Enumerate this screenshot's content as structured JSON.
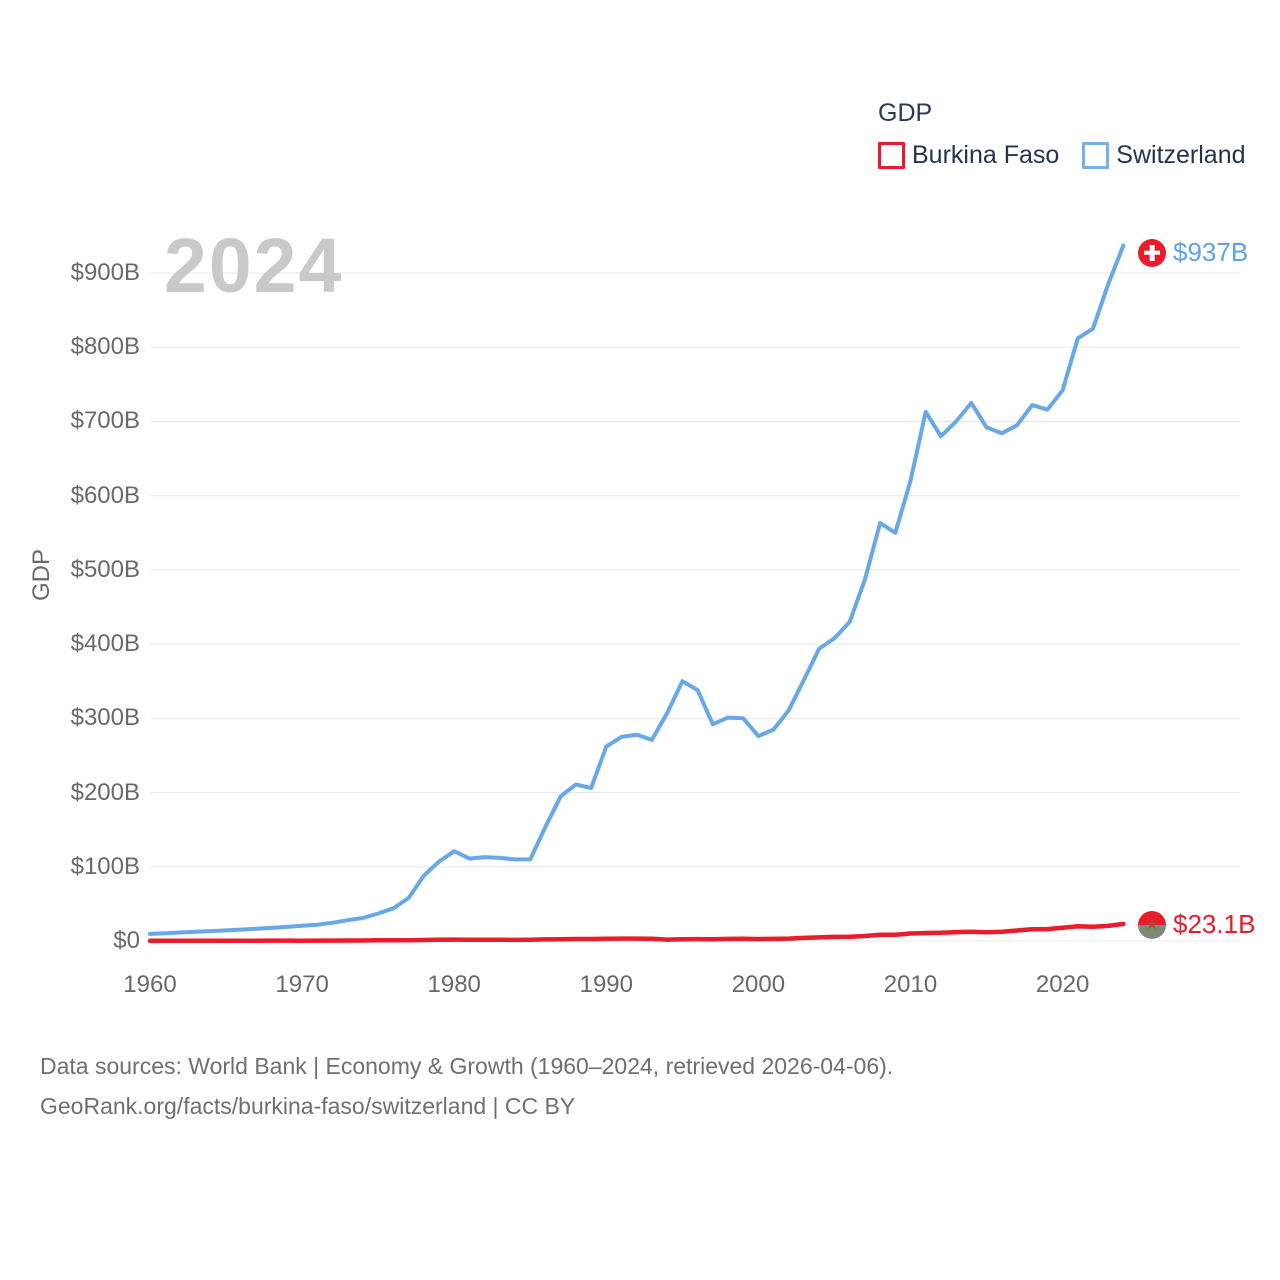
{
  "watermark": "2024",
  "legend": {
    "title": "GDP",
    "items": [
      {
        "label": "Burkina Faso",
        "color": "#e81c2a"
      },
      {
        "label": "Switzerland",
        "color": "#77b1ea"
      }
    ]
  },
  "icons": {
    "burkina_faso_star_glyph": "★"
  },
  "footer": {
    "line1": "Data sources: World Bank | Economy & Growth (1960–2024, retrieved 2026-04-06).",
    "line2": "GeoRank.org/facts/burkina-faso/switzerland | CC BY"
  },
  "chart_data": {
    "type": "line",
    "title": "GDP",
    "ylabel": "GDP",
    "grid": "horizontal",
    "legend_position": "top-right",
    "x_axis": {
      "range": [
        1960,
        2024
      ],
      "ticks": [
        1960,
        1970,
        1980,
        1990,
        2000,
        2010,
        2020
      ],
      "tick_labels": [
        "1960",
        "1970",
        "1980",
        "1990",
        "2000",
        "2010",
        "2020"
      ]
    },
    "y_axis": {
      "unit": "billions of USD",
      "range": [
        0,
        950
      ],
      "ticks": [
        0,
        100,
        200,
        300,
        400,
        500,
        600,
        700,
        800,
        900
      ],
      "tick_labels": [
        "$0",
        "$100B",
        "$200B",
        "$300B",
        "$400B",
        "$500B",
        "$600B",
        "$700B",
        "$800B",
        "$900B"
      ]
    },
    "years": [
      1960,
      1961,
      1962,
      1963,
      1964,
      1965,
      1966,
      1967,
      1968,
      1969,
      1970,
      1971,
      1972,
      1973,
      1974,
      1975,
      1976,
      1977,
      1978,
      1979,
      1980,
      1981,
      1982,
      1983,
      1984,
      1985,
      1986,
      1987,
      1988,
      1989,
      1990,
      1991,
      1992,
      1993,
      1994,
      1995,
      1996,
      1997,
      1998,
      1999,
      2000,
      2001,
      2002,
      2003,
      2004,
      2005,
      2006,
      2007,
      2008,
      2009,
      2010,
      2011,
      2012,
      2013,
      2014,
      2015,
      2016,
      2017,
      2018,
      2019,
      2020,
      2021,
      2022,
      2023,
      2024
    ],
    "series": [
      {
        "name": "Burkina Faso",
        "color": "#e81c2a",
        "end_label": "$23.1B",
        "flag": "burkina-faso",
        "values": [
          0.33,
          0.35,
          0.37,
          0.39,
          0.41,
          0.43,
          0.44,
          0.46,
          0.48,
          0.49,
          0.46,
          0.49,
          0.55,
          0.62,
          0.72,
          0.91,
          0.97,
          1.08,
          1.32,
          1.58,
          1.93,
          1.8,
          1.73,
          1.61,
          1.49,
          1.57,
          2.1,
          2.42,
          2.72,
          2.67,
          3.1,
          3.18,
          3.28,
          3.04,
          1.91,
          2.38,
          2.57,
          2.44,
          2.79,
          2.96,
          2.61,
          2.84,
          3.21,
          4.21,
          4.83,
          5.46,
          5.85,
          6.77,
          8.37,
          8.37,
          10.11,
          10.72,
          11.17,
          11.95,
          12.37,
          11.83,
          12.57,
          14.11,
          15.89,
          15.99,
          17.93,
          19.74,
          19.18,
          20.32,
          23.1
        ]
      },
      {
        "name": "Switzerland",
        "color": "#68a8e8",
        "end_label": "$937B",
        "flag": "switzerland",
        "values": [
          9.5,
          10.5,
          11.5,
          12.4,
          13.3,
          14.3,
          15.3,
          16.4,
          17.6,
          19.0,
          20.5,
          22.0,
          24.5,
          28.0,
          31.0,
          37.0,
          44.0,
          58.0,
          88.0,
          107.0,
          121.0,
          111.0,
          113.0,
          112.0,
          110.0,
          110.0,
          154.0,
          195.0,
          211.0,
          206.0,
          262.0,
          275.0,
          278.0,
          271.0,
          307.0,
          350.0,
          338.0,
          292.0,
          301.0,
          300.0,
          276.0,
          285.0,
          311.0,
          352.0,
          394.0,
          408.0,
          430.0,
          487.0,
          563.0,
          550.0,
          620.0,
          713.0,
          680.0,
          700.0,
          725.0,
          692.0,
          684.0,
          695.0,
          722.0,
          716.0,
          742.0,
          812.0,
          825.0,
          885.0,
          937.0
        ]
      }
    ]
  }
}
